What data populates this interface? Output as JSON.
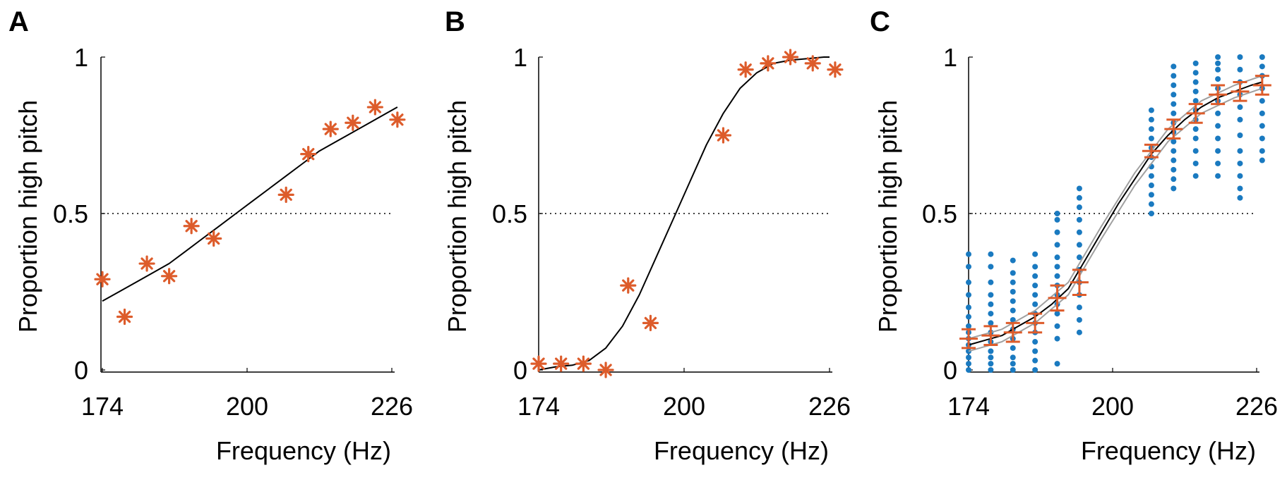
{
  "colors": {
    "marker": "#dd5c2b",
    "dots": "#1a7ac0",
    "curve": "#000000",
    "gray_curve": "#a0a0a0",
    "threshold": "#000000"
  },
  "chart_data": [
    {
      "panel": "A",
      "type": "scatter",
      "xlabel": "Frequency (Hz)",
      "ylabel": "Proportion high pitch",
      "xlim": [
        174,
        226
      ],
      "ylim": [
        0,
        1
      ],
      "xticks": [
        "174",
        "200",
        "226"
      ],
      "yticks": [
        "0",
        "0.5",
        "1"
      ],
      "reference_line_y": 0.5,
      "series": [
        {
          "marker": "asterisk",
          "x": [
            174,
            178,
            182,
            186,
            190,
            194,
            207,
            211,
            215,
            219,
            223,
            227
          ],
          "y": [
            0.29,
            0.17,
            0.34,
            0.3,
            0.46,
            0.42,
            0.56,
            0.69,
            0.77,
            0.79,
            0.84,
            0.8
          ]
        }
      ],
      "fit": {
        "x": [
          174,
          177,
          180,
          183,
          186,
          189,
          192,
          195,
          198,
          201,
          204,
          207,
          210,
          213,
          216,
          219,
          222,
          225,
          227
        ],
        "y": [
          0.22,
          0.25,
          0.28,
          0.31,
          0.34,
          0.38,
          0.42,
          0.46,
          0.5,
          0.54,
          0.58,
          0.62,
          0.66,
          0.7,
          0.73,
          0.76,
          0.79,
          0.82,
          0.84
        ]
      }
    },
    {
      "panel": "B",
      "type": "scatter",
      "xlabel": "Frequency (Hz)",
      "ylabel": "Proportion high pitch",
      "xlim": [
        174,
        226
      ],
      "ylim": [
        0,
        1
      ],
      "xticks": [
        "174",
        "200",
        "226"
      ],
      "yticks": [
        "0",
        "0.5",
        "1"
      ],
      "reference_line_y": 0.5,
      "series": [
        {
          "marker": "asterisk",
          "x": [
            174,
            178,
            182,
            186,
            190,
            194,
            207,
            211,
            215,
            219,
            223,
            227
          ],
          "y": [
            0.02,
            0.02,
            0.02,
            0.0,
            0.27,
            0.15,
            0.75,
            0.96,
            0.98,
            1.0,
            0.98,
            0.96
          ]
        }
      ],
      "fit": {
        "x": [
          174,
          177,
          180,
          183,
          186,
          189,
          192,
          195,
          198,
          201,
          204,
          207,
          210,
          213,
          216,
          219,
          222,
          225,
          226
        ],
        "y": [
          0.0,
          0.01,
          0.015,
          0.03,
          0.07,
          0.14,
          0.24,
          0.36,
          0.48,
          0.6,
          0.72,
          0.82,
          0.9,
          0.95,
          0.98,
          0.99,
          0.995,
          1.0,
          1.0
        ]
      }
    },
    {
      "panel": "C",
      "type": "scatter",
      "xlabel": "Frequency (Hz)",
      "ylabel": "Proportion high pitch",
      "xlim": [
        174,
        226
      ],
      "ylim": [
        0,
        1
      ],
      "xticks": [
        "174",
        "200",
        "226"
      ],
      "yticks": [
        "0",
        "0.5",
        "1"
      ],
      "reference_line_y": 0.5,
      "individual_points": [
        {
          "x": 174,
          "y": [
            0.0,
            0.02,
            0.04,
            0.06,
            0.08,
            0.1,
            0.12,
            0.14,
            0.17,
            0.2,
            0.24,
            0.28,
            0.33,
            0.37
          ]
        },
        {
          "x": 178,
          "y": [
            0.0,
            0.02,
            0.04,
            0.06,
            0.09,
            0.12,
            0.15,
            0.18,
            0.21,
            0.24,
            0.28,
            0.33,
            0.37
          ]
        },
        {
          "x": 182,
          "y": [
            0.0,
            0.02,
            0.04,
            0.07,
            0.1,
            0.13,
            0.16,
            0.19,
            0.22,
            0.25,
            0.28,
            0.31,
            0.35
          ]
        },
        {
          "x": 186,
          "y": [
            0.0,
            0.03,
            0.06,
            0.09,
            0.12,
            0.15,
            0.18,
            0.21,
            0.24,
            0.27,
            0.3,
            0.33,
            0.37
          ]
        },
        {
          "x": 190,
          "y": [
            0.02,
            0.1,
            0.14,
            0.18,
            0.21,
            0.24,
            0.27,
            0.3,
            0.33,
            0.36,
            0.4,
            0.44,
            0.48,
            0.5
          ]
        },
        {
          "x": 194,
          "y": [
            0.12,
            0.16,
            0.2,
            0.24,
            0.28,
            0.32,
            0.36,
            0.4,
            0.44,
            0.48,
            0.52,
            0.55,
            0.58
          ]
        },
        {
          "x": 207,
          "y": [
            0.5,
            0.53,
            0.56,
            0.59,
            0.62,
            0.65,
            0.68,
            0.71,
            0.74,
            0.77,
            0.8,
            0.83
          ]
        },
        {
          "x": 211,
          "y": [
            0.58,
            0.61,
            0.64,
            0.67,
            0.7,
            0.73,
            0.76,
            0.79,
            0.82,
            0.85,
            0.88,
            0.91,
            0.94,
            0.97
          ]
        },
        {
          "x": 215,
          "y": [
            0.62,
            0.66,
            0.7,
            0.74,
            0.77,
            0.8,
            0.83,
            0.86,
            0.89,
            0.92,
            0.95,
            0.98
          ]
        },
        {
          "x": 219,
          "y": [
            0.62,
            0.66,
            0.7,
            0.74,
            0.78,
            0.82,
            0.86,
            0.9,
            0.93,
            0.96,
            0.98,
            1.0
          ]
        },
        {
          "x": 223,
          "y": [
            0.55,
            0.58,
            0.62,
            0.66,
            0.7,
            0.75,
            0.8,
            0.84,
            0.88,
            0.92,
            0.96,
            1.0
          ]
        },
        {
          "x": 227,
          "y": [
            0.67,
            0.7,
            0.74,
            0.78,
            0.82,
            0.86,
            0.9,
            0.94,
            0.97,
            1.0
          ]
        }
      ],
      "mean_with_error": {
        "x": [
          174,
          178,
          182,
          186,
          190,
          194,
          207,
          211,
          215,
          219,
          223,
          227
        ],
        "y": [
          0.1,
          0.11,
          0.12,
          0.15,
          0.23,
          0.28,
          0.7,
          0.77,
          0.82,
          0.88,
          0.89,
          0.91
        ],
        "err": [
          0.03,
          0.03,
          0.03,
          0.03,
          0.04,
          0.04,
          0.02,
          0.03,
          0.03,
          0.03,
          0.03,
          0.03
        ]
      },
      "fit": {
        "x": [
          174,
          177,
          180,
          183,
          186,
          189,
          192,
          195,
          198,
          201,
          204,
          207,
          210,
          213,
          216,
          219,
          222,
          225,
          227
        ],
        "y": [
          0.08,
          0.095,
          0.11,
          0.14,
          0.17,
          0.21,
          0.26,
          0.35,
          0.44,
          0.53,
          0.61,
          0.69,
          0.75,
          0.8,
          0.84,
          0.87,
          0.89,
          0.91,
          0.92
        ]
      },
      "gray_fits": [
        {
          "x": [
            174,
            180,
            186,
            192,
            198,
            204,
            210,
            216,
            222,
            227
          ],
          "y": [
            0.1,
            0.13,
            0.19,
            0.28,
            0.46,
            0.63,
            0.77,
            0.86,
            0.91,
            0.94
          ]
        },
        {
          "x": [
            174,
            180,
            186,
            192,
            198,
            204,
            210,
            216,
            222,
            227
          ],
          "y": [
            0.06,
            0.09,
            0.15,
            0.24,
            0.42,
            0.59,
            0.73,
            0.82,
            0.87,
            0.9
          ]
        }
      ]
    }
  ]
}
